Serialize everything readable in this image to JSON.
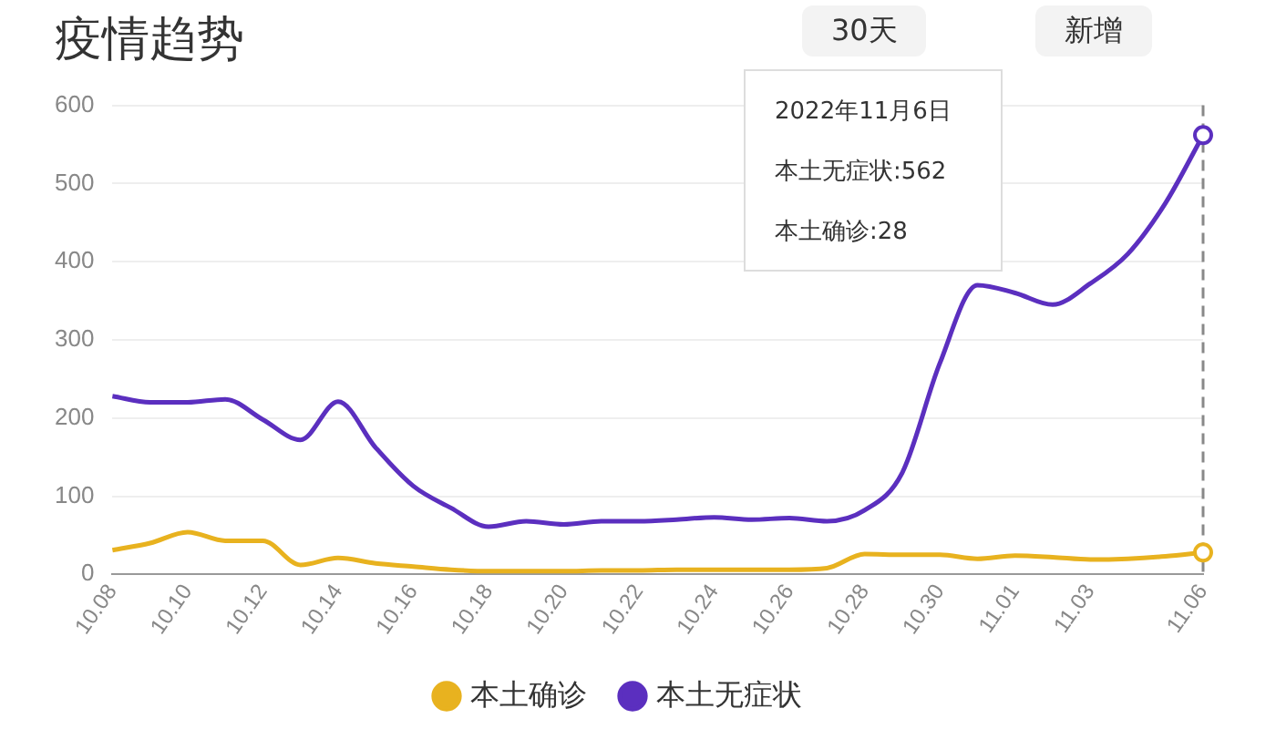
{
  "chart_data": {
    "type": "line",
    "title": "疫情趋势",
    "categories": [
      "10.08",
      null,
      "10.10",
      null,
      "10.12",
      null,
      "10.14",
      null,
      "10.16",
      null,
      "10.18",
      null,
      "10.20",
      null,
      "10.22",
      null,
      "10.24",
      null,
      "10.26",
      null,
      "10.28",
      null,
      "10.30",
      null,
      "11.01",
      null,
      "11.03",
      null,
      null,
      "11.06"
    ],
    "series": [
      {
        "name": "本土确诊",
        "color": "#e8b21f",
        "values": [
          31,
          40,
          54,
          43,
          43,
          12,
          21,
          14,
          10,
          6,
          4,
          4,
          4,
          5,
          5,
          6,
          6,
          6,
          6,
          8,
          26,
          25,
          25,
          20,
          24,
          22,
          19,
          20,
          23,
          28
        ]
      },
      {
        "name": "本土无症状",
        "color": "#5b2fbf",
        "values": [
          228,
          220,
          220,
          224,
          198,
          172,
          221,
          162,
          113,
          85,
          61,
          68,
          64,
          68,
          68,
          70,
          73,
          70,
          72,
          68,
          82,
          130,
          270,
          370,
          360,
          345,
          372,
          410,
          475,
          562
        ]
      }
    ],
    "ylim": [
      0,
      600
    ],
    "yticks": [
      0,
      100,
      200,
      300,
      400,
      500,
      600
    ],
    "grid": "y",
    "legend": "bottom",
    "marker": "none",
    "line_style": "solid",
    "ref_lines": [
      {
        "axis": "x",
        "value": "11.06",
        "line_style": "dashed",
        "color": "#888888"
      }
    ],
    "annotations": [
      "30天",
      "新增",
      "2022年11月6日",
      "本土无症状:562",
      "本土确诊:28"
    ]
  }
}
